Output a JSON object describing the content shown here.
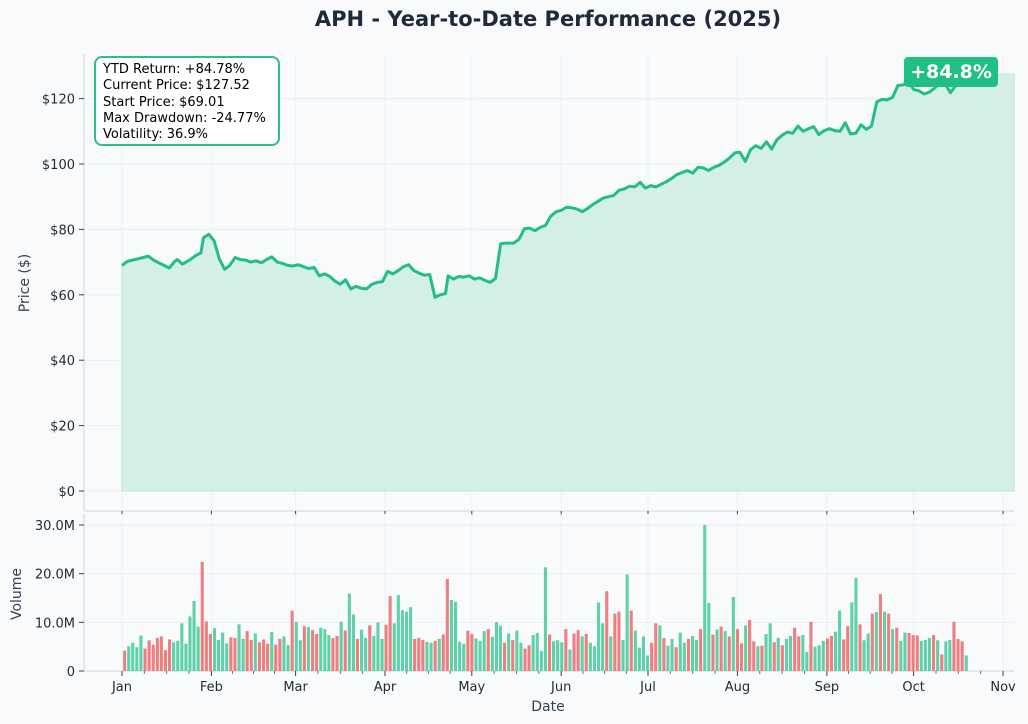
{
  "chart_data": [
    {
      "type": "area",
      "title": "APH - Year-to-Date Performance (2025)",
      "ylabel": "Price ($)",
      "ylim": [
        0,
        133
      ],
      "grid": true,
      "y_tick_labels": [
        "$0",
        "$20",
        "$40",
        "$60",
        "$80",
        "$100",
        "$120"
      ],
      "y_ticks": [
        0,
        20,
        40,
        60,
        80,
        100,
        120
      ],
      "colors": {
        "line": "#21bf85",
        "fill": "#d4efe5"
      },
      "badge": "+84.8%",
      "stats": [
        "YTD Return: +84.78%",
        "Current Price: $127.52",
        "Start Price: $69.01",
        "Max Drawdown: -24.77%",
        "Volatility: 36.9%"
      ],
      "series": [
        {
          "values": [
            [
              0,
              69.0
            ],
            [
              2,
              70.2
            ],
            [
              5,
              70.8
            ],
            [
              8,
              71.4
            ],
            [
              10,
              71.8
            ],
            [
              12,
              70.6
            ],
            [
              14,
              69.8
            ],
            [
              16,
              69.0
            ],
            [
              18,
              68.2
            ],
            [
              20,
              70.2
            ],
            [
              21,
              70.8
            ],
            [
              23,
              69.4
            ],
            [
              26,
              70.8
            ],
            [
              28,
              72.0
            ],
            [
              30,
              72.8
            ],
            [
              31,
              77.5
            ],
            [
              33,
              78.5
            ],
            [
              35,
              76.5
            ],
            [
              37,
              71.0
            ],
            [
              39,
              67.8
            ],
            [
              41,
              69.0
            ],
            [
              43,
              71.4
            ],
            [
              45,
              70.8
            ],
            [
              47,
              70.6
            ],
            [
              49,
              70.0
            ],
            [
              51,
              70.4
            ],
            [
              53,
              69.8
            ],
            [
              55,
              70.8
            ],
            [
              57,
              71.6
            ],
            [
              59,
              70.0
            ],
            [
              61,
              69.6
            ],
            [
              63,
              69.0
            ],
            [
              65,
              68.8
            ],
            [
              67,
              69.2
            ],
            [
              69,
              68.6
            ],
            [
              71,
              68.0
            ],
            [
              73,
              68.4
            ],
            [
              75,
              65.8
            ],
            [
              77,
              66.4
            ],
            [
              79,
              65.6
            ],
            [
              81,
              64.2
            ],
            [
              83,
              63.2
            ],
            [
              85,
              64.6
            ],
            [
              87,
              61.8
            ],
            [
              89,
              62.6
            ],
            [
              91,
              62.0
            ],
            [
              93,
              61.8
            ],
            [
              95,
              63.2
            ],
            [
              97,
              63.8
            ],
            [
              99,
              64.0
            ],
            [
              101,
              67.2
            ],
            [
              103,
              66.4
            ],
            [
              105,
              67.4
            ],
            [
              107,
              68.6
            ],
            [
              109,
              69.2
            ],
            [
              111,
              67.4
            ],
            [
              113,
              66.6
            ],
            [
              115,
              66.0
            ],
            [
              117,
              66.2
            ],
            [
              119,
              59.2
            ],
            [
              121,
              60.0
            ],
            [
              123,
              60.4
            ],
            [
              124,
              65.8
            ],
            [
              126,
              64.8
            ],
            [
              128,
              65.6
            ],
            [
              130,
              65.4
            ],
            [
              132,
              65.8
            ],
            [
              134,
              64.8
            ],
            [
              136,
              65.2
            ],
            [
              138,
              64.4
            ],
            [
              140,
              63.8
            ],
            [
              142,
              65.0
            ],
            [
              144,
              75.6
            ],
            [
              146,
              75.8
            ],
            [
              149,
              75.8
            ],
            [
              151,
              77.0
            ],
            [
              153,
              80.2
            ],
            [
              155,
              80.4
            ],
            [
              157,
              79.6
            ],
            [
              159,
              80.6
            ],
            [
              161,
              81.2
            ],
            [
              163,
              84.0
            ],
            [
              165,
              85.4
            ],
            [
              167,
              85.8
            ],
            [
              169,
              86.8
            ],
            [
              171,
              86.6
            ],
            [
              173,
              86.2
            ],
            [
              175,
              85.4
            ],
            [
              177,
              86.4
            ],
            [
              179,
              87.6
            ],
            [
              181,
              88.6
            ],
            [
              183,
              89.6
            ],
            [
              185,
              90.0
            ],
            [
              187,
              90.4
            ],
            [
              189,
              92.0
            ],
            [
              191,
              92.4
            ],
            [
              193,
              93.2
            ],
            [
              195,
              93.0
            ],
            [
              197,
              94.4
            ],
            [
              199,
              92.6
            ],
            [
              201,
              93.4
            ],
            [
              203,
              93.0
            ],
            [
              205,
              93.8
            ],
            [
              207,
              94.6
            ],
            [
              209,
              95.6
            ],
            [
              211,
              96.8
            ],
            [
              213,
              97.4
            ],
            [
              215,
              98.0
            ],
            [
              217,
              97.2
            ],
            [
              219,
              99.0
            ],
            [
              221,
              98.8
            ],
            [
              223,
              98.0
            ],
            [
              225,
              99.0
            ],
            [
              227,
              99.6
            ],
            [
              229,
              100.6
            ],
            [
              231,
              101.8
            ],
            [
              233,
              103.4
            ],
            [
              235,
              103.6
            ],
            [
              237,
              100.8
            ],
            [
              239,
              104.4
            ],
            [
              241,
              105.6
            ],
            [
              243,
              104.8
            ],
            [
              245,
              106.8
            ],
            [
              247,
              104.6
            ],
            [
              249,
              107.4
            ],
            [
              251,
              108.8
            ],
            [
              253,
              109.8
            ],
            [
              255,
              109.4
            ],
            [
              257,
              111.6
            ],
            [
              259,
              110.0
            ],
            [
              261,
              110.8
            ],
            [
              263,
              111.4
            ],
            [
              265,
              109.0
            ],
            [
              267,
              110.2
            ],
            [
              269,
              110.8
            ],
            [
              271,
              110.2
            ],
            [
              273,
              110.0
            ],
            [
              275,
              112.6
            ],
            [
              277,
              109.2
            ],
            [
              279,
              109.4
            ],
            [
              281,
              112.0
            ],
            [
              283,
              110.6
            ],
            [
              285,
              111.6
            ],
            [
              287,
              119.0
            ],
            [
              289,
              119.8
            ],
            [
              291,
              119.6
            ],
            [
              293,
              120.4
            ],
            [
              295,
              124.0
            ],
            [
              297,
              124.2
            ],
            [
              299,
              125.4
            ],
            [
              301,
              122.8
            ],
            [
              303,
              122.4
            ],
            [
              305,
              121.4
            ],
            [
              307,
              122.0
            ],
            [
              309,
              123.2
            ],
            [
              311,
              124.8
            ],
            [
              313,
              124.6
            ],
            [
              315,
              121.8
            ],
            [
              317,
              124.0
            ],
            [
              319,
              126.0
            ],
            [
              321,
              127.5
            ]
          ]
        }
      ]
    },
    {
      "type": "bar",
      "title": "",
      "ylabel": "Volume",
      "xlabel": "Date",
      "ylim": [
        0,
        31
      ],
      "grid": true,
      "y_tick_labels": [
        "0",
        "10.0M",
        "20.0M",
        "30.0M"
      ],
      "y_ticks": [
        0,
        10,
        20,
        30
      ],
      "x_tick_labels": [
        "Jan",
        "Feb",
        "Mar",
        "Apr",
        "May",
        "Jun",
        "Jul",
        "Aug",
        "Sep",
        "Oct",
        "Nov"
      ],
      "x_ticks": [
        0,
        34,
        66,
        100,
        133,
        167,
        200,
        234,
        268,
        301,
        335
      ],
      "colors": {
        "up": "#5fd1a8",
        "down": "#ef7f7f"
      },
      "unit": "M",
      "values": [
        4.2,
        5.1,
        5.8,
        4.9,
        7.3,
        4.6,
        6.3,
        5.4,
        6.8,
        7.1,
        4.3,
        6.5,
        5.9,
        6.2,
        9.8,
        5.6,
        11.2,
        14.4,
        9.1,
        22.4,
        10.2,
        7.6,
        8.8,
        6.4,
        7.9,
        5.7,
        6.9,
        6.8,
        9.6,
        6.6,
        8.2,
        6.4,
        7.7,
        5.9,
        6.5,
        5.6,
        8.0,
        5.4,
        6.6,
        7.1,
        5.3,
        12.4,
        10.1,
        6.3,
        9.2,
        9.0,
        8.4,
        7.6,
        8.9,
        8.6,
        7.4,
        6.8,
        7.2,
        10.1,
        8.3,
        15.9,
        11.6,
        6.6,
        8.5,
        6.8,
        9.4,
        7.2,
        10.0,
        6.6,
        9.5,
        15.4,
        9.8,
        15.6,
        12.5,
        12.2,
        13.1,
        6.6,
        6.8,
        6.4,
        6.0,
        5.8,
        6.2,
        6.6,
        7.5,
        18.9,
        14.6,
        14.2,
        6.0,
        5.6,
        8.3,
        7.6,
        6.7,
        6.2,
        8.2,
        8.6,
        7.0,
        10.0,
        9.3,
        5.8,
        7.7,
        6.4,
        8.3,
        5.8,
        4.6,
        5.3,
        7.4,
        7.8,
        4.1,
        21.3,
        7.5,
        6.1,
        6.3,
        5.9,
        8.6,
        4.4,
        7.7,
        8.4,
        7.1,
        7.6,
        5.8,
        5.1,
        14.1,
        9.8,
        16.4,
        7.1,
        11.8,
        12.2,
        6.4,
        19.8,
        12.4,
        8.3,
        4.8,
        7.1,
        3.2,
        5.8,
        9.8,
        9.4,
        6.8,
        5.2,
        6.6,
        4.9,
        7.9,
        5.8,
        6.6,
        7.2,
        6.4,
        8.6,
        30.0,
        14.0,
        7.5,
        8.5,
        9.1,
        8.2,
        7.1,
        15.2,
        8.6,
        5.7,
        9.4,
        10.5,
        6.1,
        5.1,
        5.2,
        7.6,
        9.8,
        5.9,
        6.8,
        5.3,
        6.6,
        7.2,
        8.9,
        7.1,
        7.4,
        3.9,
        10.1,
        5.0,
        5.3,
        6.2,
        6.7,
        7.2,
        8.1,
        12.4,
        6.5,
        9.2,
        14.1,
        19.1,
        9.6,
        6.3,
        7.7,
        11.8,
        12.1,
        15.8,
        12.2,
        11.8,
        8.6,
        8.9,
        6.2,
        7.9,
        7.8,
        7.4,
        7.3,
        6.2,
        6.4,
        6.8,
        7.4,
        6.3,
        3.4,
        6.1,
        6.4,
        10.1,
        6.6,
        6.1,
        3.2
      ],
      "up_down": [
        -1,
        1,
        1,
        1,
        1,
        -1,
        -1,
        -1,
        -1,
        -1,
        -1,
        -1,
        1,
        1,
        1,
        1,
        1,
        1,
        1,
        -1,
        -1,
        -1,
        1,
        1,
        1,
        1,
        -1,
        -1,
        1,
        1,
        -1,
        -1,
        1,
        -1,
        -1,
        -1,
        1,
        -1,
        -1,
        1,
        1,
        -1,
        1,
        1,
        -1,
        1,
        -1,
        -1,
        1,
        1,
        1,
        -1,
        -1,
        1,
        -1,
        1,
        1,
        -1,
        1,
        1,
        -1,
        1,
        1,
        1,
        -1,
        -1,
        1,
        1,
        1,
        1,
        1,
        -1,
        -1,
        -1,
        1,
        1,
        -1,
        1,
        -1,
        -1,
        1,
        1,
        1,
        1,
        -1,
        -1,
        1,
        1,
        1,
        -1,
        1,
        1,
        1,
        -1,
        1,
        -1,
        1,
        1,
        -1,
        -1,
        1,
        1,
        1,
        1,
        -1,
        1,
        1,
        1,
        -1,
        1,
        -1,
        -1,
        1,
        -1,
        1,
        1,
        1,
        1,
        -1,
        1,
        -1,
        -1,
        1,
        1,
        -1,
        1,
        1,
        1,
        1,
        -1,
        -1,
        1,
        -1,
        1,
        1,
        -1,
        1,
        1,
        -1,
        1,
        1,
        -1,
        1,
        1,
        -1,
        1,
        -1,
        1,
        -1,
        1,
        -1,
        -1,
        1,
        -1,
        -1,
        1,
        -1,
        1,
        1,
        -1,
        1,
        -1,
        1,
        1,
        -1,
        -1,
        1,
        1,
        -1,
        1,
        1,
        1,
        -1,
        -1,
        1,
        1,
        -1,
        -1,
        1,
        1,
        -1,
        1,
        1,
        -1,
        1,
        -1,
        1,
        -1,
        1,
        -1,
        1,
        1,
        -1,
        -1,
        -1,
        1,
        1,
        1,
        -1,
        1,
        -1,
        1,
        1,
        -1,
        -1,
        -1,
        1
      ]
    }
  ]
}
